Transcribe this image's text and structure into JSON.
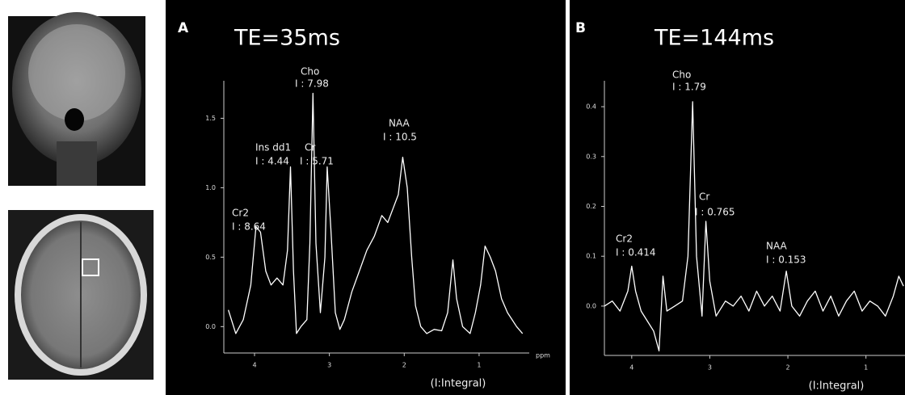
{
  "chart_data": [
    {
      "type": "line",
      "panel_label": "A",
      "title": "TE=35ms",
      "xlabel": "ppm",
      "note": "(I:Integral)",
      "x": [
        4.35,
        4.25,
        4.15,
        4.05,
        3.98,
        3.92,
        3.85,
        3.78,
        3.7,
        3.62,
        3.56,
        3.52,
        3.48,
        3.44,
        3.38,
        3.3,
        3.26,
        3.22,
        3.18,
        3.12,
        3.06,
        3.03,
        2.98,
        2.92,
        2.86,
        2.8,
        2.7,
        2.6,
        2.5,
        2.4,
        2.3,
        2.22,
        2.15,
        2.08,
        2.02,
        1.96,
        1.9,
        1.85,
        1.78,
        1.7,
        1.6,
        1.5,
        1.42,
        1.35,
        1.3,
        1.22,
        1.12,
        1.05,
        0.98,
        0.92,
        0.85,
        0.78,
        0.7,
        0.62,
        0.5,
        0.42
      ],
      "series": [
        {
          "color": "#ffffff",
          "values": [
            0.12,
            -0.05,
            0.05,
            0.3,
            0.72,
            0.68,
            0.4,
            0.3,
            0.35,
            0.3,
            0.55,
            1.15,
            0.4,
            -0.05,
            0.0,
            0.05,
            0.6,
            1.68,
            0.6,
            0.1,
            0.5,
            1.15,
            0.7,
            0.1,
            -0.02,
            0.05,
            0.25,
            0.4,
            0.55,
            0.65,
            0.8,
            0.75,
            0.85,
            0.95,
            1.22,
            1.0,
            0.5,
            0.15,
            0.0,
            -0.05,
            -0.02,
            -0.03,
            0.1,
            0.48,
            0.2,
            0.0,
            -0.05,
            0.1,
            0.3,
            0.58,
            0.5,
            0.4,
            0.2,
            0.1,
            0.0,
            -0.05
          ]
        }
      ],
      "xlim": [
        4.41,
        0.33
      ],
      "ylim": [
        -0.19,
        1.77
      ],
      "xticks": [
        4,
        3,
        2,
        1
      ],
      "yticks": [
        {
          "value": 0,
          "label": "0.0"
        },
        0.5,
        {
          "value": 1,
          "label": "1.0"
        },
        1.5
      ],
      "annotations": [
        {
          "label": "Cho",
          "text": "I : 7.98"
        },
        {
          "label": "Ins dd1",
          "text": "I : 4.44"
        },
        {
          "label": "Cr",
          "text": "I : 5.71"
        },
        {
          "label": "NAA",
          "text": "I : 10.5"
        },
        {
          "label": "Cr2",
          "text": "I : 8.64"
        }
      ]
    },
    {
      "type": "line",
      "panel_label": "B",
      "title": "TE=144ms",
      "note": "(I:Integral)",
      "x": [
        4.35,
        4.25,
        4.15,
        4.05,
        4.0,
        3.95,
        3.88,
        3.8,
        3.72,
        3.65,
        3.6,
        3.55,
        3.45,
        3.35,
        3.28,
        3.22,
        3.17,
        3.1,
        3.05,
        3.0,
        2.92,
        2.8,
        2.7,
        2.6,
        2.5,
        2.4,
        2.3,
        2.2,
        2.1,
        2.02,
        1.95,
        1.85,
        1.75,
        1.65,
        1.55,
        1.45,
        1.35,
        1.25,
        1.15,
        1.05,
        0.95,
        0.85,
        0.75,
        0.65,
        0.58,
        0.52
      ],
      "series": [
        {
          "color": "#ffffff",
          "values": [
            0.0,
            0.01,
            -0.01,
            0.03,
            0.08,
            0.03,
            -0.01,
            -0.03,
            -0.05,
            -0.09,
            0.06,
            -0.01,
            0.0,
            0.01,
            0.1,
            0.41,
            0.1,
            -0.02,
            0.17,
            0.05,
            -0.02,
            0.01,
            0.0,
            0.02,
            -0.01,
            0.03,
            0.0,
            0.02,
            -0.01,
            0.07,
            0.0,
            -0.02,
            0.01,
            0.03,
            -0.01,
            0.02,
            -0.02,
            0.01,
            0.03,
            -0.01,
            0.01,
            0.0,
            -0.02,
            0.02,
            0.06,
            0.04
          ]
        }
      ],
      "xlim": [
        4.35,
        0.5
      ],
      "ylim": [
        -0.099,
        0.452
      ],
      "xticks": [
        4,
        3,
        2,
        1
      ],
      "yticks": [
        {
          "value": 0,
          "label": "0.0"
        },
        0.1,
        0.2,
        0.3,
        0.4
      ],
      "annotations": [
        {
          "label": "Cho",
          "text": "I : 1.79"
        },
        {
          "label": "Cr",
          "text": "I : 0.765"
        },
        {
          "label": "Cr2",
          "text": "I : 0.414"
        },
        {
          "label": "NAA",
          "text": "I : 0.153"
        }
      ]
    }
  ]
}
